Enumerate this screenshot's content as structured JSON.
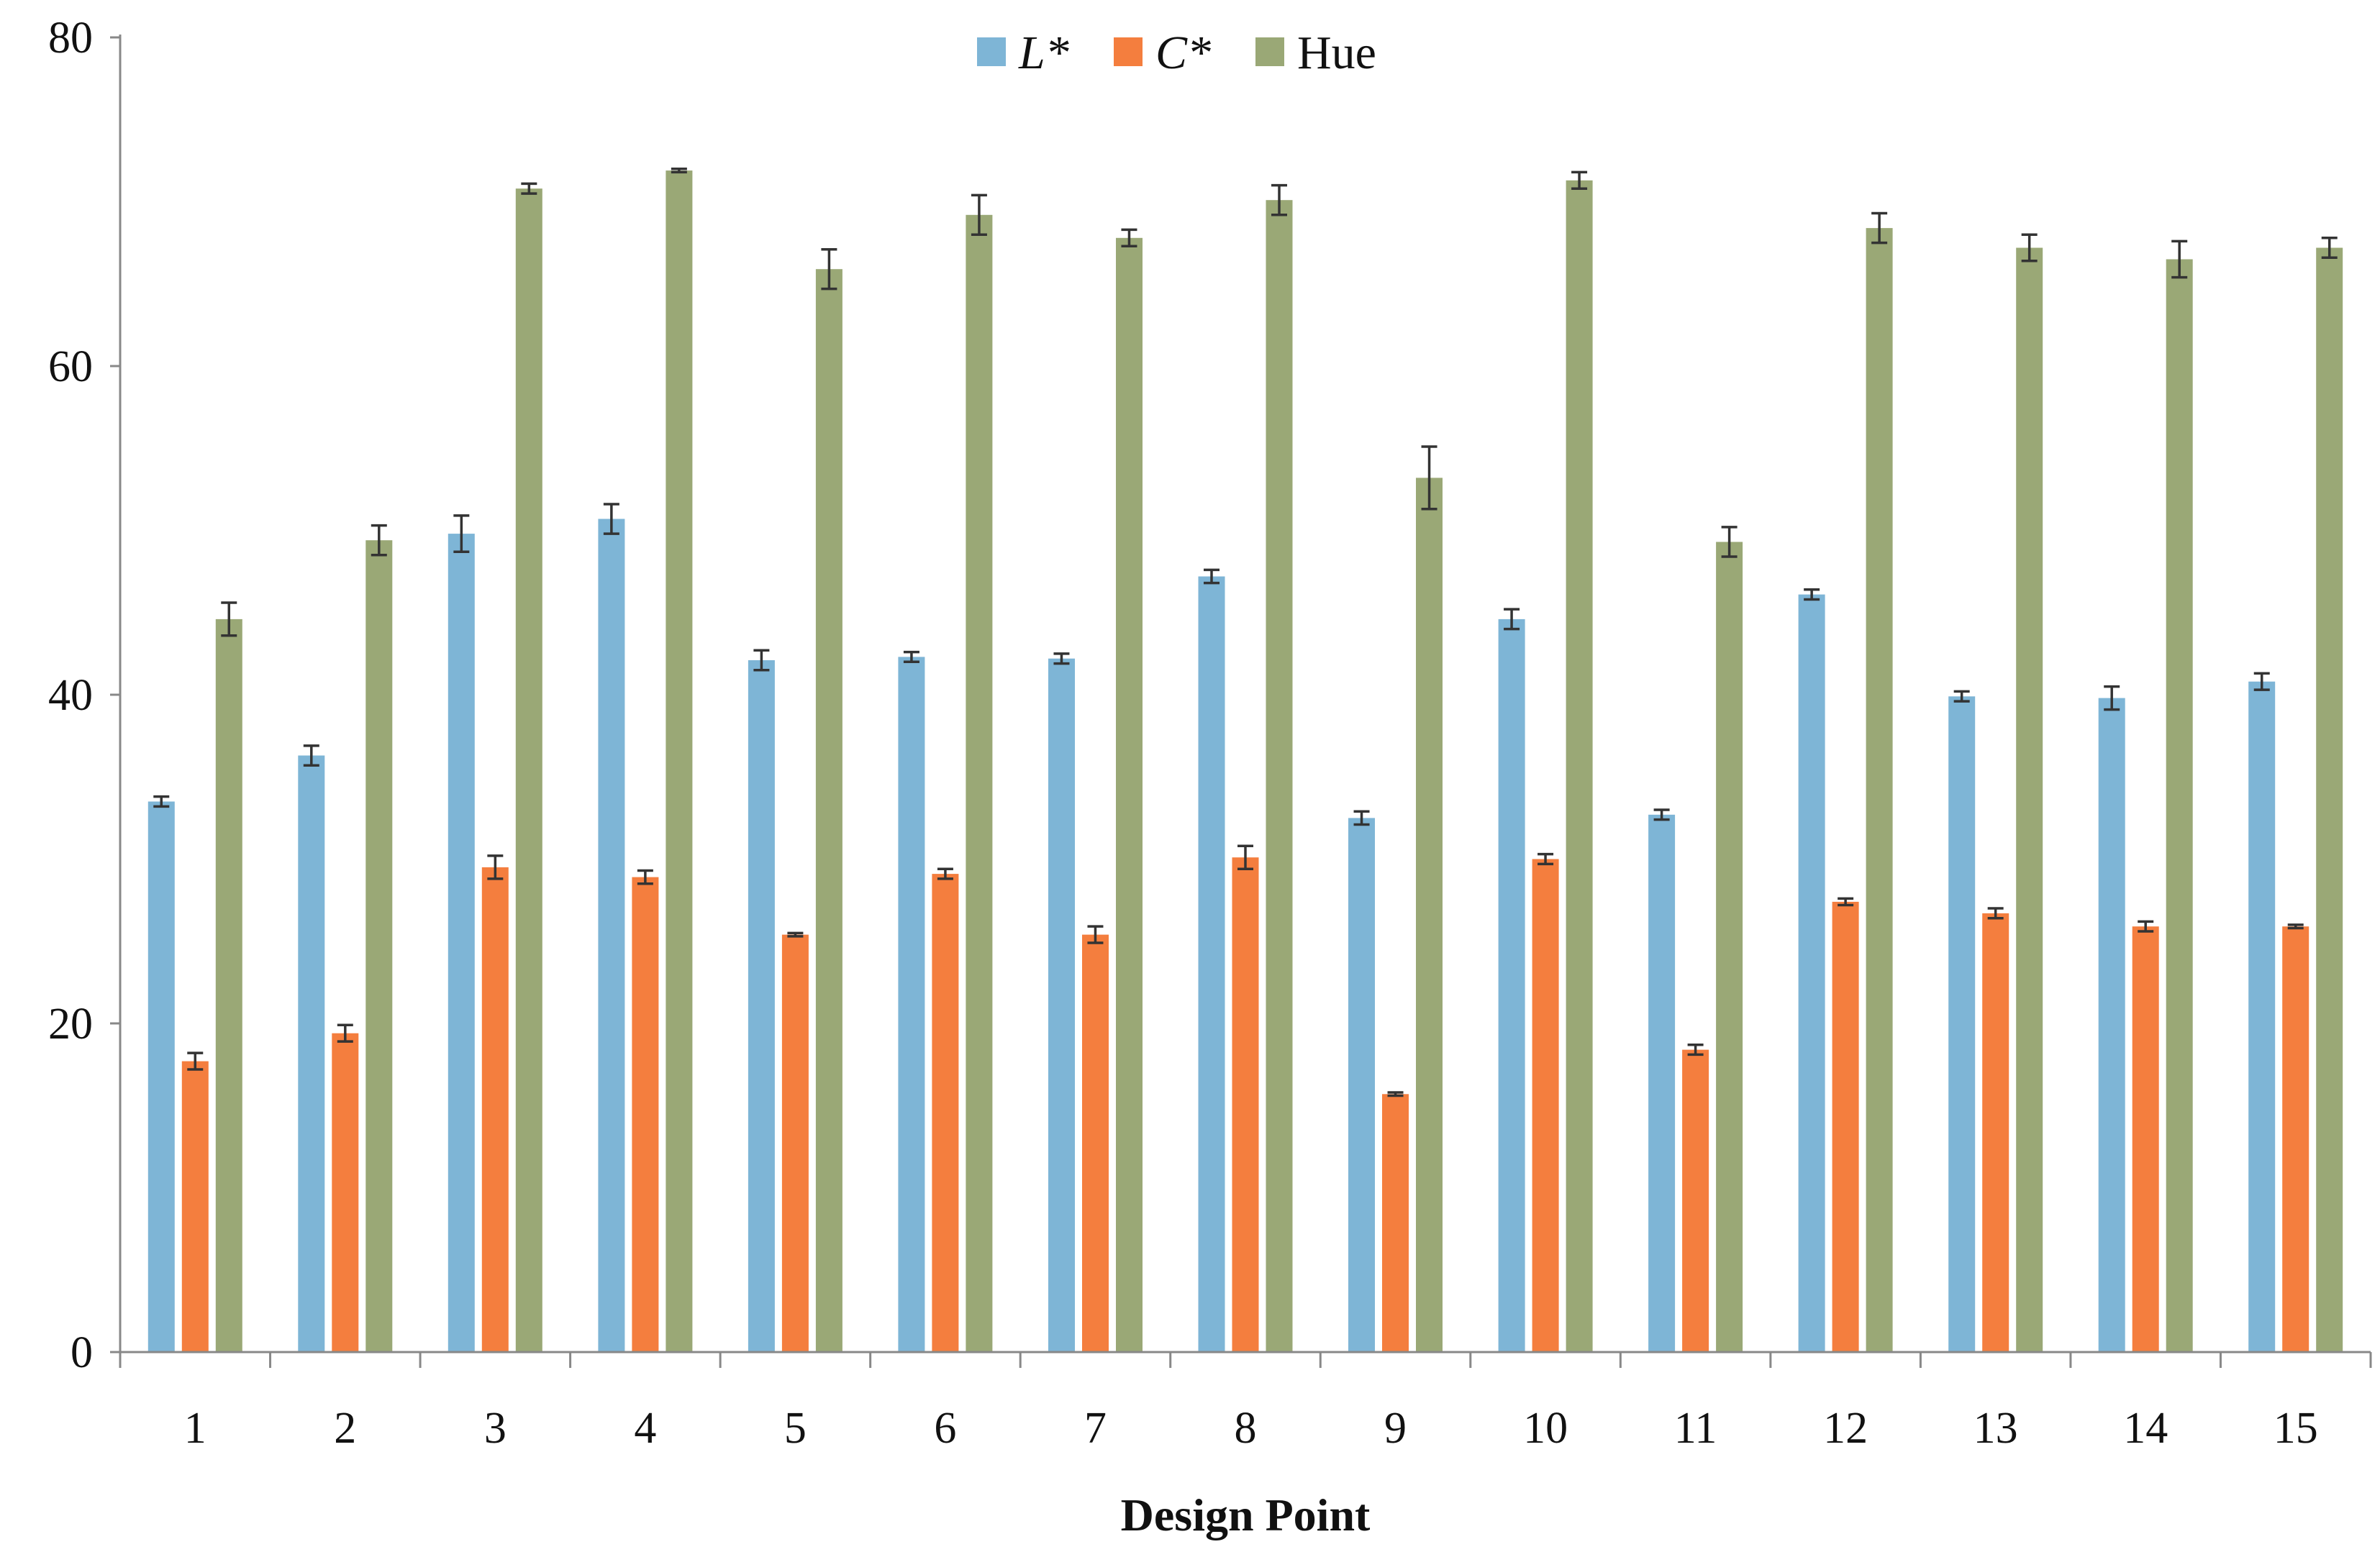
{
  "chart_data": {
    "type": "bar",
    "title": "",
    "xlabel": "Design Point",
    "ylabel": "",
    "ylim": [
      0,
      80
    ],
    "yticks": [
      0,
      20,
      40,
      60,
      80
    ],
    "grid": false,
    "legend_position": "top-center",
    "categories": [
      "1",
      "2",
      "3",
      "4",
      "5",
      "6",
      "7",
      "8",
      "9",
      "10",
      "11",
      "12",
      "13",
      "14",
      "15"
    ],
    "series": [
      {
        "name": "L*",
        "italic": true,
        "color": "#7eb5d6",
        "values": [
          33.5,
          36.3,
          49.8,
          50.7,
          42.1,
          42.3,
          42.2,
          47.2,
          32.5,
          44.6,
          32.7,
          46.1,
          39.9,
          39.8,
          40.8
        ],
        "errors": [
          0.3,
          0.6,
          1.1,
          0.9,
          0.6,
          0.3,
          0.3,
          0.4,
          0.4,
          0.6,
          0.3,
          0.3,
          0.3,
          0.7,
          0.5
        ]
      },
      {
        "name": "C*",
        "italic": true,
        "color": "#f47e3e",
        "values": [
          17.7,
          19.4,
          29.5,
          28.9,
          25.4,
          29.1,
          25.4,
          30.1,
          15.7,
          30.0,
          18.4,
          27.4,
          26.7,
          25.9,
          25.9
        ],
        "errors": [
          0.5,
          0.5,
          0.7,
          0.4,
          0.1,
          0.3,
          0.5,
          0.7,
          0.1,
          0.3,
          0.3,
          0.2,
          0.3,
          0.3,
          0.1
        ]
      },
      {
        "name": "Hue",
        "italic": false,
        "color": "#9aa876",
        "values": [
          44.6,
          49.4,
          70.8,
          71.9,
          65.9,
          69.2,
          67.8,
          70.1,
          53.2,
          71.3,
          49.3,
          68.4,
          67.2,
          66.5,
          67.2
        ],
        "errors": [
          1.0,
          0.9,
          0.3,
          0.1,
          1.2,
          1.2,
          0.5,
          0.9,
          1.9,
          0.5,
          0.9,
          0.9,
          0.8,
          1.1,
          0.6
        ]
      }
    ]
  }
}
